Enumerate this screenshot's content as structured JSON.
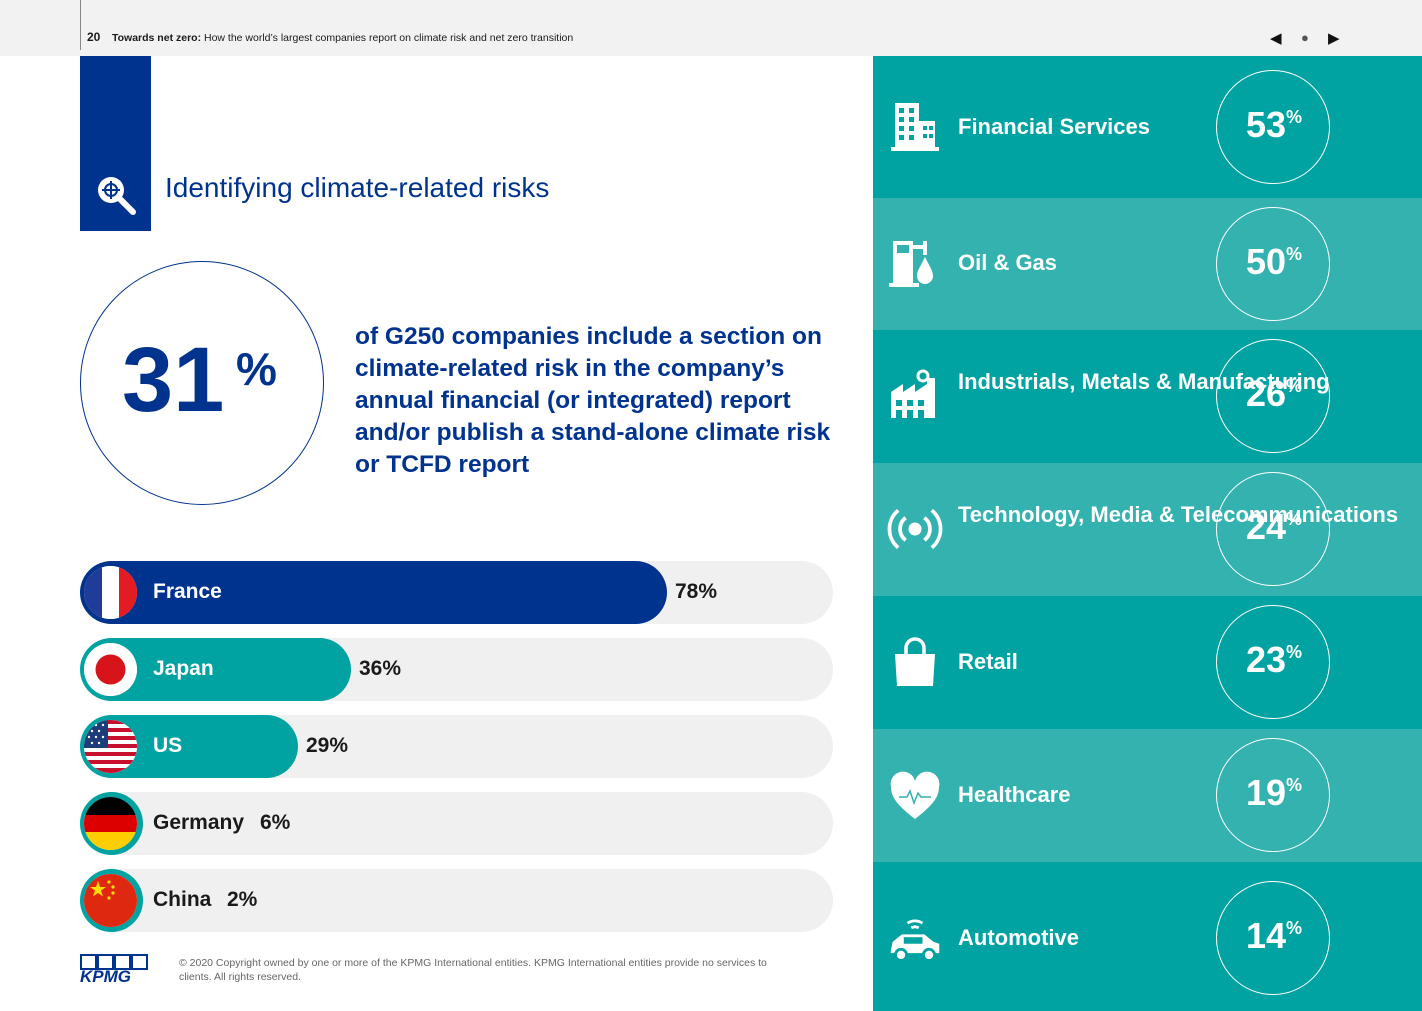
{
  "header": {
    "page_number": "20",
    "title_bold": "Towards net zero:",
    "title_rest": " How the world’s largest companies report on climate risk and net zero transition",
    "nav_prev": "◀",
    "nav_home": "●",
    "nav_next": "▶"
  },
  "section": {
    "icon": "magnifier-icon",
    "title": "Identifying climate-related risks"
  },
  "headline": {
    "number": "31",
    "percent_sign": "%",
    "statement": "of G250 companies include a section on climate-related risk in the company’s annual financial (or integrated) report and/or publish a stand-alone climate risk or TCFD report"
  },
  "countries": [
    {
      "name": "France",
      "value": "78%",
      "fraction": 0.78,
      "color": "#00338d",
      "label_color": "#ffffff",
      "flag": "france-flag"
    },
    {
      "name": "Japan",
      "value": "36%",
      "fraction": 0.36,
      "color": "#00a3a1",
      "label_color": "#ffffff",
      "flag": "japan-flag"
    },
    {
      "name": "US",
      "value": "29%",
      "fraction": 0.29,
      "color": "#00a3a1",
      "label_color": "#ffffff",
      "flag": "us-flag"
    },
    {
      "name": "Germany",
      "value": "6%",
      "fraction": 0.06,
      "color": "#00a3a1",
      "label_color": "#1a1a1a",
      "flag": "germany-flag"
    },
    {
      "name": "China",
      "value": "2%",
      "fraction": 0.02,
      "color": "#00a3a1",
      "label_color": "#1a1a1a",
      "flag": "china-flag"
    }
  ],
  "sectors": [
    {
      "name": "Financial Services",
      "number": "53",
      "sign": "%",
      "icon": "building-icon",
      "bg": "#00a3a1"
    },
    {
      "name": "Oil & Gas",
      "number": "50",
      "sign": "%",
      "icon": "oil-drop-icon",
      "bg": "#33b2b0"
    },
    {
      "name": "Industrials, Metals & Manufacturing",
      "number": "26",
      "sign": "%",
      "icon": "factory-icon",
      "bg": "#00a3a1"
    },
    {
      "name": "Technology, Media & Telecommunications",
      "number": "24",
      "sign": "%",
      "icon": "broadcast-icon",
      "bg": "#33b2b0"
    },
    {
      "name": "Retail",
      "number": "23",
      "sign": "%",
      "icon": "shopping-bag-icon",
      "bg": "#00a3a1"
    },
    {
      "name": "Healthcare",
      "number": "19",
      "sign": "%",
      "icon": "heart-icon",
      "bg": "#33b2b0"
    },
    {
      "name": "Automotive",
      "number": "14",
      "sign": "%",
      "icon": "connected-car-icon",
      "bg": "#00a3a1"
    }
  ],
  "footer": {
    "logo": "KPMG",
    "copyright": "© 2020 Copyright owned by one or more of the KPMG International entities. KPMG International entities provide no services to clients.  All rights reserved."
  },
  "colors": {
    "kpmg_blue": "#00338d",
    "teal": "#00a3a1",
    "teal_light": "#33b2b0",
    "bar_track": "#f0f0f0"
  }
}
